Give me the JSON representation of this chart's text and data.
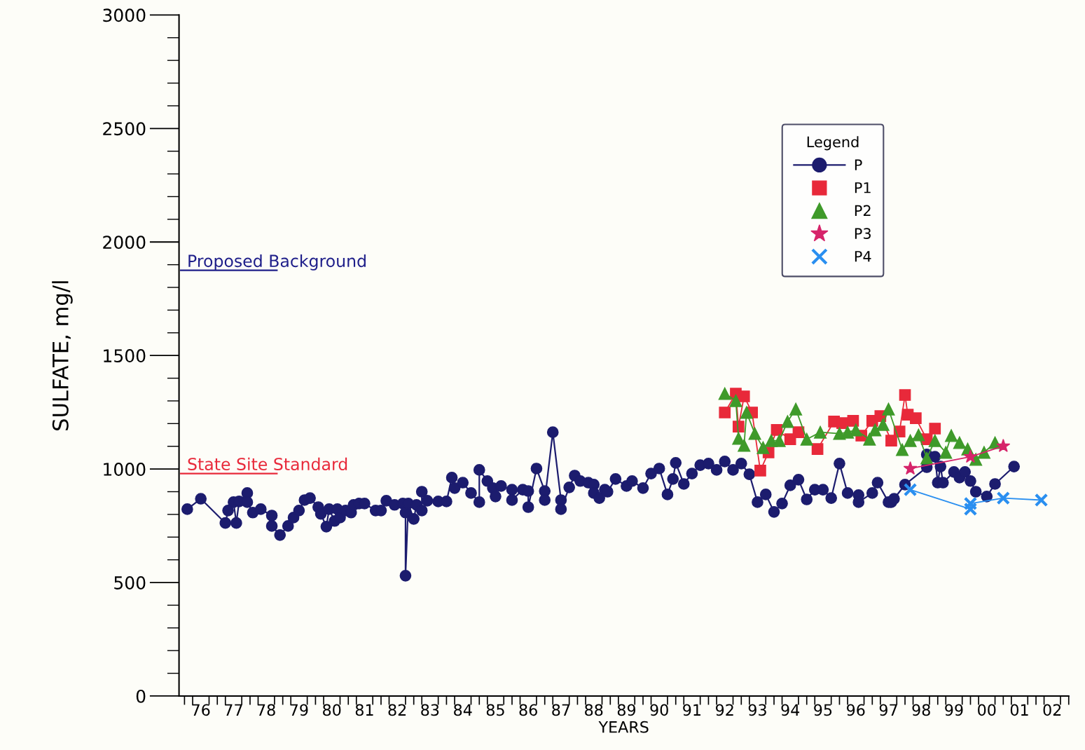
{
  "chart_data": {
    "type": "line",
    "xlabel": "YEARS",
    "ylabel": "SULFATE, mg/l",
    "legend_title": "Legend",
    "legend": "top right",
    "grid": false,
    "xlim": [
      "1975-11",
      "2003-01"
    ],
    "ylim": [
      0,
      3000
    ],
    "yticks": [
      0,
      500,
      1000,
      1500,
      2000,
      2500,
      3000
    ],
    "xticks": [
      {
        "value": "1976-07",
        "label": "76"
      },
      {
        "value": "1977-07",
        "label": "77"
      },
      {
        "value": "1978-07",
        "label": "78"
      },
      {
        "value": "1979-07",
        "label": "79"
      },
      {
        "value": "1980-07",
        "label": "80"
      },
      {
        "value": "1981-07",
        "label": "81"
      },
      {
        "value": "1982-07",
        "label": "82"
      },
      {
        "value": "1983-07",
        "label": "83"
      },
      {
        "value": "1984-07",
        "label": "84"
      },
      {
        "value": "1985-07",
        "label": "85"
      },
      {
        "value": "1986-07",
        "label": "86"
      },
      {
        "value": "1987-07",
        "label": "87"
      },
      {
        "value": "1988-07",
        "label": "88"
      },
      {
        "value": "1989-07",
        "label": "89"
      },
      {
        "value": "1990-07",
        "label": "90"
      },
      {
        "value": "1991-07",
        "label": "91"
      },
      {
        "value": "1992-07",
        "label": "92"
      },
      {
        "value": "1993-07",
        "label": "93"
      },
      {
        "value": "1994-07",
        "label": "94"
      },
      {
        "value": "1995-07",
        "label": "95"
      },
      {
        "value": "1996-07",
        "label": "96"
      },
      {
        "value": "1997-07",
        "label": "97"
      },
      {
        "value": "1998-07",
        "label": "98"
      },
      {
        "value": "1999-07",
        "label": "99"
      },
      {
        "value": "2000-07",
        "label": "00"
      },
      {
        "value": "2001-07",
        "label": "01"
      },
      {
        "value": "2002-07",
        "label": "02"
      }
    ],
    "ref_lines": [
      {
        "axis": "y",
        "value": 1875,
        "label": "Proposed Background",
        "color": "#1f1f8a"
      },
      {
        "axis": "y",
        "value": 980,
        "label": "State Site Standard",
        "color": "#e8293a"
      }
    ],
    "series": [
      {
        "name": "P",
        "color": "#1c1c6e",
        "marker": "circle",
        "x": [
          "1976-02",
          "1976-07",
          "1977-04",
          "1977-05",
          "1977-07",
          "1977-08",
          "1977-09",
          "1977-12",
          "1977-12",
          "1978-02",
          "1978-05",
          "1978-09",
          "1978-09",
          "1978-12",
          "1979-03",
          "1979-05",
          "1979-07",
          "1979-09",
          "1979-11",
          "1980-02",
          "1980-03",
          "1980-05",
          "1980-06",
          "1980-08",
          "1980-09",
          "1980-10",
          "1980-12",
          "1981-02",
          "1981-03",
          "1981-05",
          "1981-07",
          "1981-11",
          "1982-01",
          "1982-03",
          "1982-06",
          "1982-09",
          "1982-10",
          "1982-10",
          "1982-11",
          "1983-01",
          "1983-02",
          "1983-04",
          "1983-04",
          "1983-06",
          "1983-10",
          "1984-01",
          "1984-03",
          "1984-04",
          "1984-07",
          "1984-10",
          "1985-01",
          "1985-01",
          "1985-04",
          "1985-06",
          "1985-07",
          "1985-09",
          "1986-01",
          "1986-01",
          "1986-05",
          "1986-07",
          "1986-07",
          "1986-10",
          "1987-01",
          "1987-01",
          "1987-04",
          "1987-07",
          "1987-07",
          "1987-10",
          "1987-12",
          "1988-02",
          "1988-05",
          "1988-07",
          "1988-07",
          "1988-09",
          "1988-11",
          "1988-12",
          "1989-03",
          "1989-07",
          "1989-09",
          "1990-01",
          "1990-04",
          "1990-07",
          "1990-10",
          "1990-12",
          "1991-01",
          "1991-04",
          "1991-07",
          "1991-10",
          "1992-01",
          "1992-04",
          "1992-07",
          "1992-10",
          "1993-01",
          "1993-04",
          "1993-07",
          "1993-10",
          "1994-01",
          "1994-04",
          "1994-07",
          "1994-10",
          "1995-01",
          "1995-04",
          "1995-07",
          "1995-10",
          "1996-01",
          "1996-04",
          "1996-08",
          "1996-08",
          "1997-01",
          "1997-03",
          "1997-07",
          "1997-08",
          "1997-09",
          "1998-01",
          "1998-09",
          "1998-09",
          "1998-12",
          "1999-01",
          "1999-02",
          "1999-03",
          "1999-07",
          "1999-09",
          "1999-11",
          "2000-01",
          "2000-03",
          "2000-07",
          "2000-10",
          "2001-05"
        ],
        "values": [
          823,
          869,
          762,
          817,
          854,
          762,
          857,
          894,
          854,
          808,
          823,
          795,
          749,
          709,
          749,
          786,
          817,
          863,
          872,
          832,
          802,
          746,
          823,
          771,
          823,
          786,
          817,
          808,
          842,
          848,
          848,
          817,
          817,
          860,
          842,
          848,
          808,
          530,
          848,
          780,
          842,
          817,
          900,
          860,
          857,
          857,
          962,
          916,
          940,
          894,
          854,
          996,
          947,
          916,
          879,
          925,
          909,
          863,
          909,
          903,
          832,
          1002,
          903,
          863,
          1162,
          863,
          823,
          919,
          971,
          947,
          940,
          931,
          894,
          872,
          909,
          900,
          956,
          925,
          947,
          916,
          980,
          1002,
          888,
          956,
          1027,
          934,
          980,
          1017,
          1024,
          996,
          1033,
          996,
          1024,
          977,
          854,
          888,
          811,
          848,
          928,
          953,
          866,
          909,
          909,
          872,
          1024,
          894,
          885,
          854,
          894,
          940,
          854,
          854,
          869,
          931,
          1008,
          1064,
          1054,
          940,
          1011,
          940,
          987,
          962,
          987,
          947,
          900,
          879,
          934,
          1011
        ]
      },
      {
        "name": "P1",
        "color": "#e8293a",
        "marker": "square",
        "x": [
          "1992-07",
          "1992-11",
          "1992-12",
          "1993-02",
          "1993-05",
          "1993-08",
          "1993-11",
          "1994-02",
          "1994-07",
          "1994-10",
          "1995-05",
          "1995-11",
          "1996-02",
          "1996-06",
          "1996-09",
          "1997-01",
          "1997-04",
          "1997-08",
          "1997-11",
          "1998-01",
          "1998-02",
          "1998-05",
          "1998-09",
          "1998-12"
        ],
        "values": [
          1249,
          1332,
          1187,
          1320,
          1249,
          993,
          1073,
          1172,
          1131,
          1162,
          1088,
          1209,
          1202,
          1212,
          1147,
          1212,
          1233,
          1125,
          1165,
          1326,
          1239,
          1224,
          1131,
          1178
        ]
      },
      {
        "name": "P2",
        "color": "#3f9a2a",
        "marker": "triangle",
        "x": [
          "1992-07",
          "1992-11",
          "1992-12",
          "1993-02",
          "1993-03",
          "1993-06",
          "1993-09",
          "1993-12",
          "1994-03",
          "1994-06",
          "1994-09",
          "1995-01",
          "1995-06",
          "1996-01",
          "1996-04",
          "1996-07",
          "1996-12",
          "1997-02",
          "1997-05",
          "1997-07",
          "1997-12",
          "1998-03",
          "1998-06",
          "1998-09",
          "1998-12",
          "1999-04",
          "1999-06",
          "1999-09",
          "1999-12",
          "2000-03",
          "2000-06",
          "2000-10"
        ],
        "values": [
          1332,
          1301,
          1135,
          1104,
          1249,
          1156,
          1094,
          1125,
          1125,
          1209,
          1264,
          1131,
          1162,
          1156,
          1162,
          1172,
          1131,
          1172,
          1196,
          1264,
          1085,
          1125,
          1150,
          1048,
          1125,
          1073,
          1147,
          1116,
          1088,
          1042,
          1073,
          1116
        ]
      },
      {
        "name": "P3",
        "color": "#d6246a",
        "marker": "star",
        "x": [
          "1998-03",
          "2000-01",
          "2001-01"
        ],
        "values": [
          1002,
          1054,
          1101
        ]
      },
      {
        "name": "P4",
        "color": "#2a8ff0",
        "marker": "cross",
        "x": [
          "1998-03",
          "2000-01",
          "2000-01",
          "2001-01",
          "2002-03"
        ],
        "values": [
          909,
          823,
          848,
          872,
          863
        ]
      }
    ]
  }
}
